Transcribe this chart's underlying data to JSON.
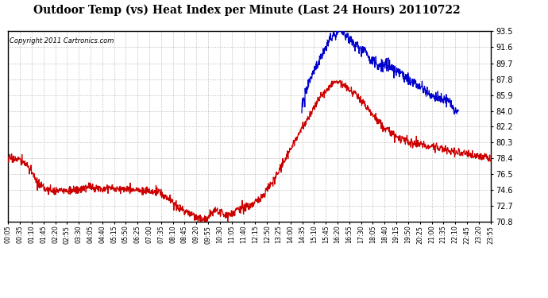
{
  "title": "Outdoor Temp (vs) Heat Index per Minute (Last 24 Hours) 20110722",
  "copyright_text": "Copyright 2011 Cartronics.com",
  "y_min": 70.8,
  "y_max": 93.5,
  "y_ticks": [
    70.8,
    72.7,
    74.6,
    76.5,
    78.4,
    80.3,
    82.2,
    84.0,
    85.9,
    87.8,
    89.7,
    91.6,
    93.5
  ],
  "background_color": "#ffffff",
  "grid_color": "#aaaaaa",
  "line_color_red": "#cc0000",
  "line_color_blue": "#0000cc",
  "x_labels": [
    "00:05",
    "00:35",
    "01:10",
    "01:45",
    "02:20",
    "02:55",
    "03:30",
    "04:05",
    "04:40",
    "05:15",
    "05:50",
    "06:25",
    "07:00",
    "07:35",
    "08:10",
    "08:45",
    "09:20",
    "09:55",
    "10:30",
    "11:05",
    "11:40",
    "12:15",
    "12:50",
    "13:25",
    "14:00",
    "14:35",
    "15:10",
    "15:45",
    "16:20",
    "16:55",
    "17:30",
    "18:05",
    "18:40",
    "19:15",
    "19:50",
    "20:25",
    "21:00",
    "21:35",
    "22:10",
    "22:45",
    "23:20",
    "23:55"
  ],
  "noise_scale_red": 0.25,
  "noise_scale_blue": 0.35
}
